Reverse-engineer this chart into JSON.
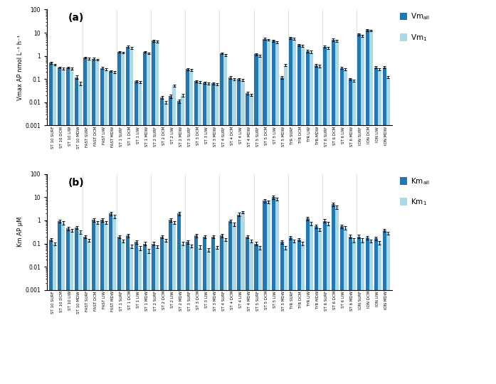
{
  "categories": [
    "ST 10 SURF",
    "ST 10 DCM",
    "ST 10 LIW",
    "ST 10 MDW",
    "FAST SURF",
    "FAST DCM",
    "FAST LIW",
    "FAST MDW",
    "ST 1 SURF",
    "ST 1 DCM",
    "ST 1 LIW",
    "ST 1 MDW",
    "ST 2 SURF",
    "ST 2 DCM",
    "ST 2 LIW",
    "ST 2 MDW",
    "ST 3 SURF",
    "ST 3 DCM",
    "ST 3 LIW",
    "ST 3 MDW",
    "ST 4 SURF",
    "ST 4 DCM",
    "ST 4 LIW",
    "ST 4 MDW",
    "ST 5 SURF",
    "ST 5 DCM",
    "ST 5 LIW",
    "ST 5 MDW",
    "TYR SURF",
    "TYR DCM",
    "TYR LIW",
    "TYR MDW",
    "ST 6 SURF",
    "ST 6 DCM",
    "ST 6 LIW",
    "ST 6 MDW",
    "ION SURF",
    "ION DCM",
    "ION LIW",
    "ION MDW"
  ],
  "vm_all": [
    0.5,
    0.32,
    0.32,
    0.12,
    0.85,
    0.75,
    0.3,
    0.22,
    1.5,
    2.5,
    0.08,
    1.5,
    4.5,
    0.016,
    0.018,
    0.011,
    0.27,
    0.08,
    0.07,
    0.065,
    1.3,
    0.12,
    0.1,
    0.025,
    1.2,
    5.5,
    4.5,
    0.12,
    6.0,
    3.0,
    1.6,
    0.4,
    2.5,
    5.0,
    0.3,
    0.1,
    8.5,
    13.0,
    0.32,
    0.32
  ],
  "vm_1": [
    0.42,
    0.28,
    0.28,
    0.065,
    0.75,
    0.68,
    0.26,
    0.2,
    1.4,
    2.2,
    0.075,
    1.3,
    4.2,
    0.01,
    0.052,
    0.02,
    0.25,
    0.075,
    0.065,
    0.06,
    1.1,
    0.1,
    0.09,
    0.021,
    1.0,
    5.0,
    4.0,
    0.4,
    5.5,
    2.7,
    1.5,
    0.37,
    2.2,
    4.5,
    0.26,
    0.085,
    7.5,
    12.5,
    0.26,
    0.12
  ],
  "vm_all_err": [
    0.05,
    0.03,
    0.03,
    0.02,
    0.08,
    0.07,
    0.03,
    0.02,
    0.15,
    0.25,
    0.01,
    0.15,
    0.5,
    0.002,
    0.003,
    0.002,
    0.03,
    0.008,
    0.008,
    0.007,
    0.12,
    0.015,
    0.012,
    0.003,
    0.12,
    0.6,
    0.5,
    0.015,
    0.7,
    0.3,
    0.18,
    0.05,
    0.28,
    0.55,
    0.03,
    0.012,
    1.0,
    1.5,
    0.035,
    0.035
  ],
  "vm_1_err": [
    0.04,
    0.025,
    0.025,
    0.012,
    0.07,
    0.06,
    0.025,
    0.018,
    0.13,
    0.22,
    0.009,
    0.13,
    0.45,
    0.0015,
    0.006,
    0.0025,
    0.025,
    0.007,
    0.007,
    0.006,
    0.1,
    0.012,
    0.01,
    0.002,
    0.1,
    0.5,
    0.42,
    0.045,
    0.6,
    0.27,
    0.16,
    0.045,
    0.24,
    0.5,
    0.025,
    0.01,
    0.85,
    1.3,
    0.03,
    0.012
  ],
  "km_all": [
    0.15,
    0.95,
    0.45,
    0.5,
    0.2,
    1.05,
    1.05,
    2.0,
    0.2,
    0.22,
    0.12,
    0.1,
    0.1,
    0.2,
    1.05,
    2.0,
    0.12,
    0.22,
    0.2,
    0.2,
    0.22,
    0.95,
    1.8,
    0.2,
    0.1,
    7.0,
    10.0,
    0.12,
    0.18,
    0.15,
    1.2,
    0.55,
    0.95,
    5.0,
    0.55,
    0.2,
    0.2,
    0.18,
    0.17,
    0.38
  ],
  "km_1": [
    0.1,
    0.78,
    0.38,
    0.32,
    0.14,
    0.82,
    0.82,
    1.5,
    0.13,
    0.075,
    0.065,
    0.05,
    0.075,
    0.14,
    0.82,
    0.1,
    0.08,
    0.07,
    0.055,
    0.068,
    0.15,
    0.68,
    2.3,
    0.13,
    0.068,
    6.5,
    8.5,
    0.068,
    0.13,
    0.1,
    0.75,
    0.4,
    0.72,
    3.8,
    0.48,
    0.14,
    0.14,
    0.13,
    0.11,
    0.28
  ],
  "km_all_err": [
    0.025,
    0.15,
    0.07,
    0.08,
    0.03,
    0.18,
    0.18,
    0.35,
    0.03,
    0.04,
    0.02,
    0.018,
    0.018,
    0.03,
    0.18,
    0.35,
    0.02,
    0.04,
    0.03,
    0.03,
    0.04,
    0.15,
    0.3,
    0.03,
    0.018,
    1.1,
    1.5,
    0.02,
    0.03,
    0.025,
    0.2,
    0.09,
    0.16,
    0.8,
    0.09,
    0.035,
    0.035,
    0.03,
    0.028,
    0.06
  ],
  "km_1_err": [
    0.015,
    0.12,
    0.055,
    0.055,
    0.022,
    0.13,
    0.13,
    0.25,
    0.022,
    0.013,
    0.012,
    0.01,
    0.012,
    0.022,
    0.13,
    0.018,
    0.013,
    0.012,
    0.009,
    0.011,
    0.025,
    0.11,
    0.25,
    0.022,
    0.012,
    0.95,
    1.2,
    0.012,
    0.022,
    0.018,
    0.13,
    0.065,
    0.12,
    0.6,
    0.075,
    0.025,
    0.025,
    0.022,
    0.018,
    0.045
  ],
  "color_dark": "#1F77B4",
  "color_light": "#ADD8E6",
  "ylim_vm": [
    0.001,
    100
  ],
  "ylim_km": [
    0.001,
    100
  ],
  "ylabel_vm": "Vmax AP nmol L⁻¹ h⁻¹",
  "ylabel_km": "Km AP μM",
  "label_a": "(a)",
  "label_b": "(b)",
  "group_boundaries": [
    3.5,
    7.5,
    11.5,
    15.5,
    19.5,
    23.5,
    27.5,
    31.5,
    35.5
  ]
}
